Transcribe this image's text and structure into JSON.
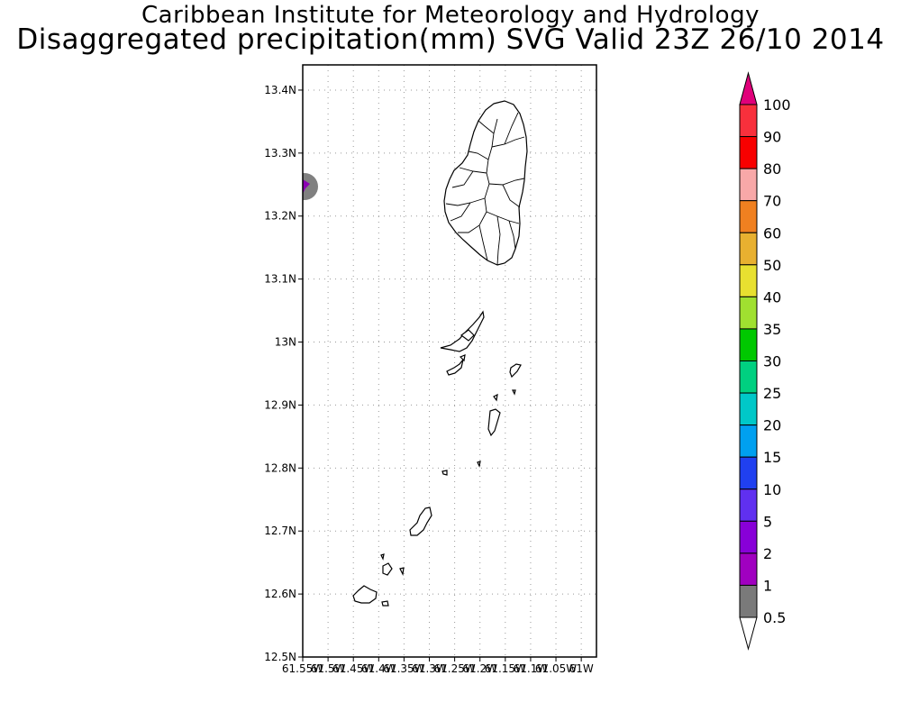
{
  "header": {
    "title": "Caribbean Institute for Meteorology and Hydrology",
    "subtitle": "Disaggregated precipitation(mm) SVG Valid 23Z 26/10 2014"
  },
  "map": {
    "lat_labels": [
      "13.4N",
      "13.3N",
      "13.2N",
      "13.1N",
      "13N",
      "12.9N",
      "12.8N",
      "12.7N",
      "12.6N",
      "12.5N"
    ],
    "lon_labels": [
      "61.55W",
      "61.5W",
      "61.45W",
      "61.4W",
      "61.35W",
      "61.3W",
      "61.25W",
      "61.2W",
      "61.15W",
      "61.1W",
      "61.05W",
      "61W"
    ],
    "lat_range": [
      12.5,
      13.44
    ],
    "lon_range": [
      -61.55,
      -60.97
    ],
    "grid": true,
    "precip_blob_colors": [
      "#808080",
      "#8c00b4"
    ]
  },
  "colorbar": {
    "labels": [
      "100",
      "90",
      "80",
      "70",
      "60",
      "50",
      "40",
      "35",
      "30",
      "25",
      "20",
      "15",
      "10",
      "5",
      "2",
      "1",
      "0.5"
    ],
    "colors": [
      "#e0007a",
      "#f8303c",
      "#f80000",
      "#f8a8a8",
      "#f08020",
      "#e8b030",
      "#e8e030",
      "#a0e030",
      "#00c800",
      "#00d080",
      "#00c8c8",
      "#00a0f0",
      "#2040f0",
      "#6030f0",
      "#8800d8",
      "#a000c0",
      "#7a7a7a",
      "#ffffff"
    ]
  }
}
